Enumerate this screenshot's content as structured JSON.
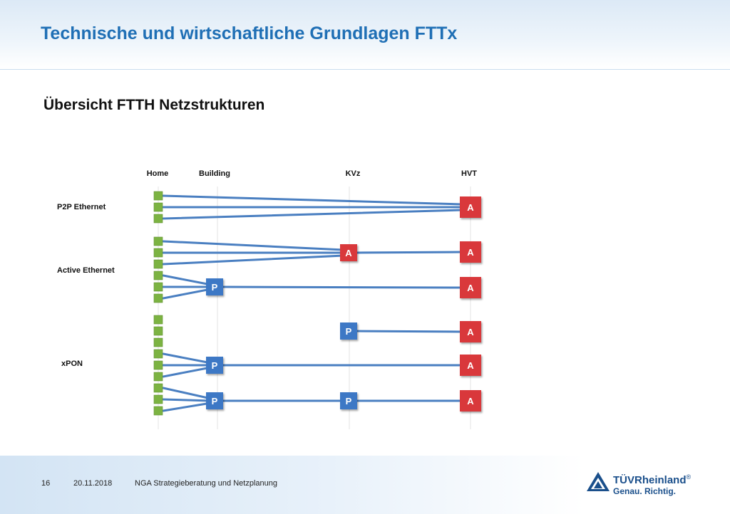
{
  "slide": {
    "title": "Technische und wirtschaftliche Grundlagen FTTx",
    "subtitle": "Übersicht FTTH Netzstrukturen"
  },
  "diagram": {
    "columns": [
      "Home",
      "Building",
      "KVz",
      "HVT"
    ],
    "rows": [
      "P2P Ethernet",
      "Active Ethernet",
      "xPON"
    ],
    "active_label": "A",
    "passive_label": "P",
    "colors": {
      "active": "#d9383a",
      "passive": "#3d78c5",
      "home": "#7cb342",
      "line": "#4a7fc1"
    }
  },
  "footer": {
    "page": "16",
    "date": "20.11.2018",
    "project": "NGA Strategieberatung und Netzplanung"
  },
  "logo": {
    "name": "TÜVRheinland",
    "registered": "®",
    "tagline": "Genau. Richtig."
  }
}
